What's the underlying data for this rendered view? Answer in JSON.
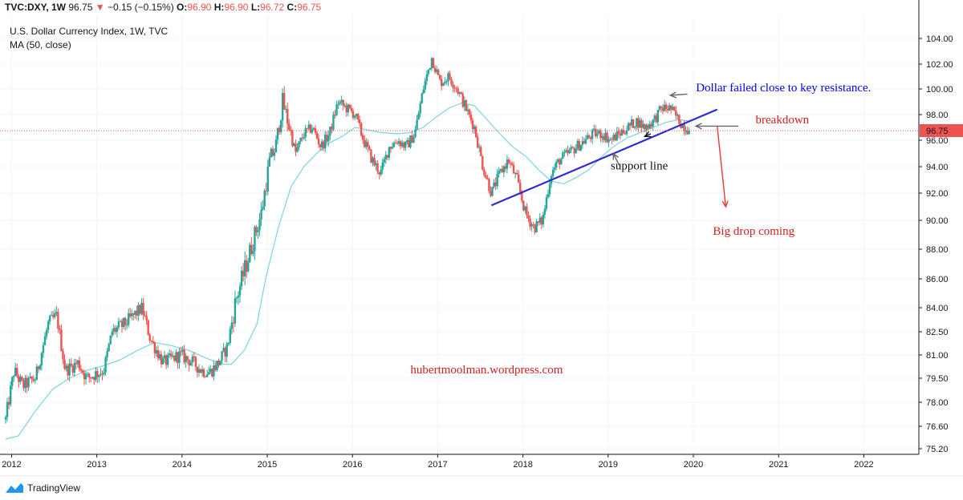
{
  "header": {
    "symbol": "TVC:DXY, 1W",
    "last": "96.75",
    "change": "−0.15 (−0.15%)",
    "o_label": "O:",
    "o": "96.90",
    "h_label": "H:",
    "h": "96.90",
    "l_label": "L:",
    "l": "96.72",
    "c_label": "C:",
    "c": "96.75"
  },
  "footer": {
    "brand": "TradingView"
  },
  "chart_data": {
    "type": "candlestick",
    "title": "U.S. Dollar Currency Index, 1W, TVC",
    "indicator": "MA (50, close)",
    "last_price": 96.75,
    "last_price_label": "96.75",
    "y_ticks": [
      "104.00",
      "102.00",
      "100.00",
      "98.00",
      "96.00",
      "94.00",
      "92.00",
      "90.00",
      "88.00",
      "86.00",
      "84.00",
      "82.50",
      "81.00",
      "79.50",
      "78.00",
      "76.60",
      "75.20"
    ],
    "x_ticks": [
      "2012",
      "2013",
      "2014",
      "2015",
      "2016",
      "2017",
      "2018",
      "2019",
      "2020",
      "2021",
      "2022"
    ],
    "price_path": [
      [
        2011.95,
        77.0
      ],
      [
        2012.05,
        80.0
      ],
      [
        2012.15,
        79.0
      ],
      [
        2012.3,
        79.5
      ],
      [
        2012.45,
        83.0
      ],
      [
        2012.55,
        83.5
      ],
      [
        2012.65,
        80.0
      ],
      [
        2012.8,
        80.5
      ],
      [
        2012.9,
        79.5
      ],
      [
        2013.1,
        80.0
      ],
      [
        2013.2,
        82.5
      ],
      [
        2013.35,
        83.0
      ],
      [
        2013.45,
        83.5
      ],
      [
        2013.55,
        84.0
      ],
      [
        2013.65,
        82.0
      ],
      [
        2013.8,
        80.5
      ],
      [
        2014.0,
        81.0
      ],
      [
        2014.15,
        80.5
      ],
      [
        2014.25,
        80.0
      ],
      [
        2014.35,
        79.9
      ],
      [
        2014.45,
        80.5
      ],
      [
        2014.55,
        81.5
      ],
      [
        2014.65,
        84.5
      ],
      [
        2014.75,
        86.5
      ],
      [
        2014.85,
        88.5
      ],
      [
        2014.95,
        90.5
      ],
      [
        2015.05,
        94.5
      ],
      [
        2015.12,
        95.5
      ],
      [
        2015.2,
        99.0
      ],
      [
        2015.28,
        97.0
      ],
      [
        2015.35,
        95.0
      ],
      [
        2015.45,
        96.5
      ],
      [
        2015.55,
        97.0
      ],
      [
        2015.65,
        95.5
      ],
      [
        2015.75,
        96.5
      ],
      [
        2015.85,
        99.0
      ],
      [
        2015.95,
        98.5
      ],
      [
        2016.05,
        98.0
      ],
      [
        2016.15,
        96.0
      ],
      [
        2016.25,
        94.5
      ],
      [
        2016.35,
        93.5
      ],
      [
        2016.45,
        95.5
      ],
      [
        2016.55,
        96.0
      ],
      [
        2016.65,
        95.5
      ],
      [
        2016.75,
        96.5
      ],
      [
        2016.85,
        100.0
      ],
      [
        2016.95,
        102.5
      ],
      [
        2017.05,
        100.5
      ],
      [
        2017.15,
        101.0
      ],
      [
        2017.25,
        100.0
      ],
      [
        2017.35,
        98.5
      ],
      [
        2017.45,
        97.0
      ],
      [
        2017.55,
        94.0
      ],
      [
        2017.65,
        92.0
      ],
      [
        2017.75,
        93.5
      ],
      [
        2017.85,
        94.5
      ],
      [
        2017.95,
        93.0
      ],
      [
        2018.05,
        90.5
      ],
      [
        2018.15,
        89.5
      ],
      [
        2018.25,
        90.0
      ],
      [
        2018.35,
        93.5
      ],
      [
        2018.45,
        94.5
      ],
      [
        2018.55,
        95.0
      ],
      [
        2018.65,
        95.5
      ],
      [
        2018.75,
        96.0
      ],
      [
        2018.85,
        96.5
      ],
      [
        2018.95,
        96.5
      ],
      [
        2019.05,
        96.0
      ],
      [
        2019.15,
        96.5
      ],
      [
        2019.25,
        97.0
      ],
      [
        2019.35,
        97.5
      ],
      [
        2019.45,
        97.0
      ],
      [
        2019.55,
        97.5
      ],
      [
        2019.65,
        98.5
      ],
      [
        2019.75,
        98.5
      ],
      [
        2019.8,
        98.0
      ],
      [
        2019.88,
        97.3
      ],
      [
        2019.97,
        96.75
      ]
    ],
    "ma_path": [
      [
        2011.95,
        75.8
      ],
      [
        2012.1,
        76.0
      ],
      [
        2012.3,
        77.5
      ],
      [
        2012.5,
        78.8
      ],
      [
        2012.7,
        79.5
      ],
      [
        2012.9,
        80.0
      ],
      [
        2013.1,
        80.3
      ],
      [
        2013.3,
        80.7
      ],
      [
        2013.5,
        81.3
      ],
      [
        2013.7,
        81.8
      ],
      [
        2013.9,
        81.6
      ],
      [
        2014.1,
        81.3
      ],
      [
        2014.3,
        80.8
      ],
      [
        2014.5,
        80.4
      ],
      [
        2014.6,
        80.4
      ],
      [
        2014.75,
        81.3
      ],
      [
        2014.9,
        83.0
      ],
      [
        2015.0,
        86.0
      ],
      [
        2015.15,
        89.5
      ],
      [
        2015.3,
        92.5
      ],
      [
        2015.45,
        94.0
      ],
      [
        2015.6,
        95.0
      ],
      [
        2015.75,
        95.8
      ],
      [
        2015.9,
        96.3
      ],
      [
        2016.05,
        97.0
      ],
      [
        2016.2,
        96.8
      ],
      [
        2016.35,
        96.6
      ],
      [
        2016.55,
        96.5
      ],
      [
        2016.7,
        96.6
      ],
      [
        2016.85,
        97.0
      ],
      [
        2017.0,
        97.8
      ],
      [
        2017.15,
        98.5
      ],
      [
        2017.3,
        98.9
      ],
      [
        2017.45,
        98.7
      ],
      [
        2017.6,
        97.6
      ],
      [
        2017.75,
        96.5
      ],
      [
        2017.9,
        95.5
      ],
      [
        2018.05,
        94.8
      ],
      [
        2018.2,
        93.8
      ],
      [
        2018.35,
        92.9
      ],
      [
        2018.5,
        92.7
      ],
      [
        2018.65,
        93.2
      ],
      [
        2018.8,
        93.8
      ],
      [
        2018.95,
        94.8
      ],
      [
        2019.1,
        95.6
      ],
      [
        2019.25,
        96.2
      ],
      [
        2019.4,
        96.6
      ],
      [
        2019.55,
        97.0
      ],
      [
        2019.7,
        97.4
      ],
      [
        2019.85,
        97.6
      ],
      [
        2019.97,
        97.5
      ]
    ],
    "support_line": [
      [
        2017.65,
        91.1
      ],
      [
        2020.3,
        98.4
      ]
    ],
    "annotations": [
      {
        "text": "Dollar failed close to key resistance.",
        "x": 2020.05,
        "y": 99.8,
        "color": "#0000ee"
      },
      {
        "text": "breakdown",
        "x": 2020.75,
        "y": 97.3,
        "color": "#cc2222"
      },
      {
        "text": "support line",
        "x": 2019.05,
        "y": 93.8,
        "color": "#111111"
      },
      {
        "text": "Big drop coming",
        "x": 2020.25,
        "y": 89.0,
        "color": "#cc2222"
      },
      {
        "text": "hubertmoolman.wordpress.com",
        "x": 2016.7,
        "y": 79.8,
        "color": "#cc2222"
      }
    ],
    "arrows": [
      {
        "from": [
          2020.3,
          97.1
        ],
        "to": [
          2020.4,
          91.0
        ],
        "color": "#e53935"
      },
      {
        "from": [
          2020.55,
          97.1
        ],
        "to": [
          2020.05,
          97.1
        ],
        "color": "#666666"
      },
      {
        "from": [
          2019.95,
          99.6
        ],
        "to": [
          2019.75,
          99.5
        ],
        "color": "#666666"
      },
      {
        "from": [
          2019.15,
          94.1
        ],
        "to": [
          2019.08,
          95.0
        ],
        "color": "#666666"
      },
      {
        "from": [
          2019.52,
          96.5
        ],
        "to": [
          2019.45,
          96.3
        ],
        "color": "#111111"
      }
    ],
    "colors": {
      "up": "#26a69a",
      "down": "#ef5350",
      "ma": "#7dd3e0",
      "support": "#2d2bd1",
      "price_line": "#ef5350"
    }
  }
}
